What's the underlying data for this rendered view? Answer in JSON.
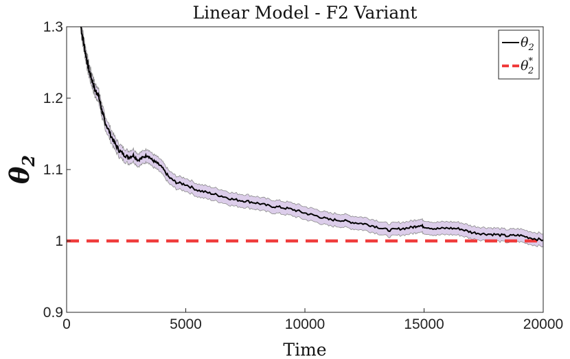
{
  "chart_data": {
    "type": "line",
    "title": "Linear Model - F2 Variant",
    "xlabel": "Time",
    "ylabel": "θ",
    "ylabel_sub": "2",
    "xlim": [
      0,
      20000
    ],
    "ylim": [
      0.9,
      1.3
    ],
    "xticks": [
      0,
      5000,
      10000,
      15000,
      20000
    ],
    "yticks": [
      0.9,
      1.0,
      1.1,
      1.2,
      1.3
    ],
    "ytick_labels": [
      "0.9",
      "1",
      "1.1",
      "1.2",
      "1.3"
    ],
    "band_halfwidth": 0.009,
    "series": [
      {
        "name": "θ2",
        "legend_main": "θ",
        "legend_sub": "2",
        "color": "#000000",
        "x": [
          600,
          700,
          800,
          900,
          1000,
          1100,
          1200,
          1300,
          1400,
          1500,
          1600,
          1800,
          2000,
          2200,
          2400,
          2600,
          2800,
          3000,
          3200,
          3400,
          3600,
          3800,
          4000,
          4300,
          4600,
          5000,
          5500,
          6000,
          6500,
          7000,
          7500,
          8000,
          8500,
          9000,
          9500,
          10000,
          10500,
          11000,
          11500,
          12000,
          12500,
          13000,
          13500,
          14000,
          14500,
          14800,
          15000,
          15500,
          16000,
          16500,
          17000,
          17500,
          18000,
          18500,
          19000,
          19500,
          20000
        ],
        "y": [
          1.3,
          1.28,
          1.262,
          1.245,
          1.232,
          1.222,
          1.21,
          1.208,
          1.195,
          1.18,
          1.168,
          1.152,
          1.138,
          1.127,
          1.121,
          1.117,
          1.12,
          1.113,
          1.117,
          1.12,
          1.113,
          1.109,
          1.103,
          1.089,
          1.082,
          1.079,
          1.071,
          1.067,
          1.063,
          1.058,
          1.056,
          1.053,
          1.049,
          1.047,
          1.044,
          1.039,
          1.035,
          1.03,
          1.029,
          1.026,
          1.024,
          1.02,
          1.015,
          1.017,
          1.019,
          1.022,
          1.02,
          1.017,
          1.018,
          1.017,
          1.012,
          1.01,
          1.009,
          1.007,
          1.008,
          1.004,
          1.001
        ]
      },
      {
        "name": "θ2*",
        "legend_main": "θ",
        "legend_sub": "2",
        "legend_sup": "*",
        "color": "#f03c3c",
        "style": "dashed",
        "x": [
          0,
          20000
        ],
        "y": [
          1.0,
          1.0
        ]
      }
    ],
    "band_color": "#dccdea",
    "band_edge_color": "#8a8a8a",
    "legend_position": "top-right"
  }
}
